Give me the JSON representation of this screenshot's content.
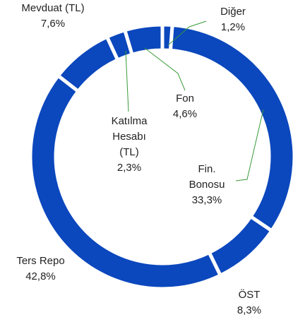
{
  "chart_data": {
    "type": "donut",
    "categories": [
      "Diğer",
      "Fin. Bonosu",
      "ÖST",
      "Ters Repo",
      "Mevduat (TL)",
      "Katılma Hesabı (TL)",
      "Fon"
    ],
    "values": [
      1.2,
      33.3,
      8.3,
      42.8,
      7.6,
      2.3,
      4.6
    ],
    "value_labels": [
      "1,2%",
      "33,3%",
      "8,3%",
      "42,8%",
      "7,6%",
      "2,3%",
      "4,6%"
    ],
    "color": "#0b47bd"
  }
}
